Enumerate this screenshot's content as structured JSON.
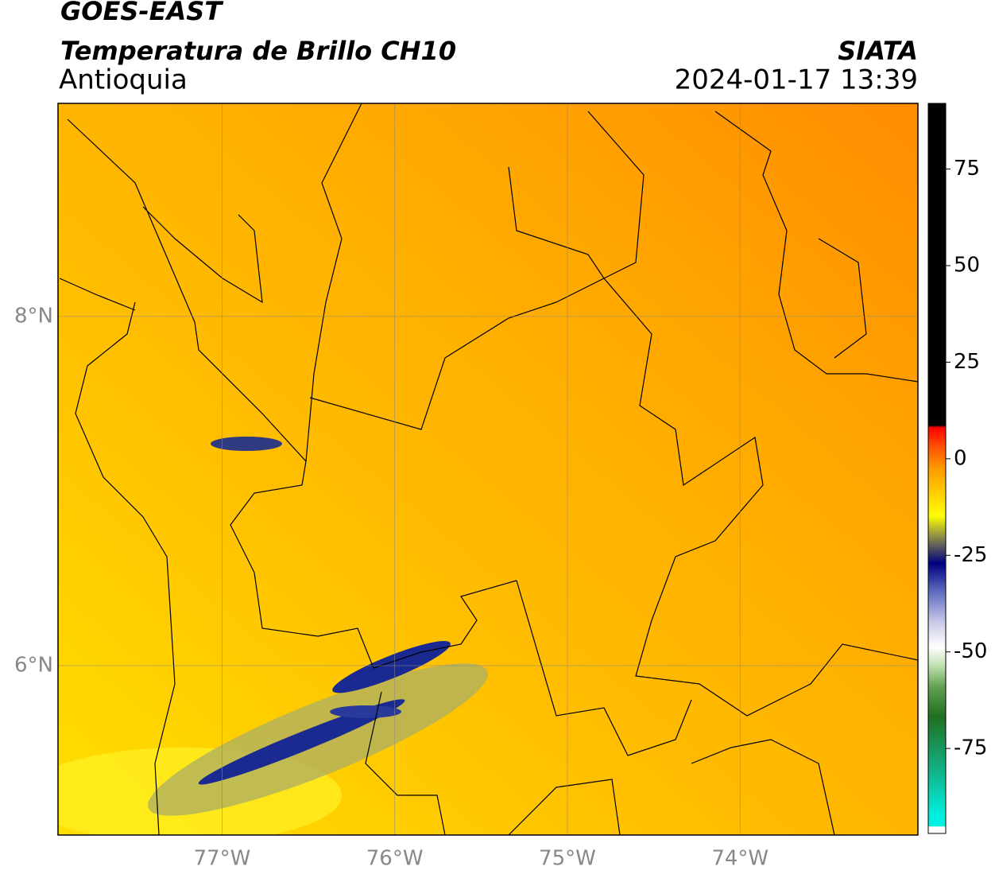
{
  "header": {
    "title": "GOES-EAST",
    "subtitle": "Temperatura de Brillo CH10",
    "region": "Antioquia",
    "source": "SIATA",
    "datetime": "2024-01-17 13:39"
  },
  "map": {
    "xlim": [
      -77.95,
      -72.97
    ],
    "ylim": [
      5.03,
      9.22
    ],
    "xticks": [
      {
        "value": -77,
        "label": "77°W"
      },
      {
        "value": -76,
        "label": "76°W"
      },
      {
        "value": -75,
        "label": "75°W"
      },
      {
        "value": -74,
        "label": "74°W"
      }
    ],
    "yticks": [
      {
        "value": 8,
        "label": "8°N"
      },
      {
        "value": 6,
        "label": "6°N"
      }
    ]
  },
  "colorbar": {
    "lim": [
      -97,
      92
    ],
    "ticks": [
      75,
      50,
      25,
      0,
      -25,
      -50,
      -75
    ]
  }
}
